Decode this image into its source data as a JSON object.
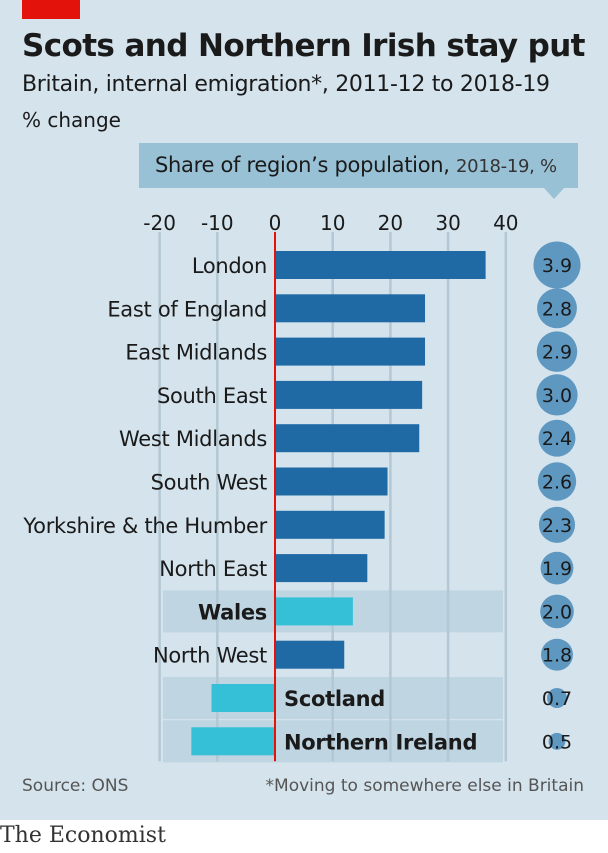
{
  "title": "Scots and Northern Irish stay put",
  "subtitle": "Britain, internal emigration*, 2011-12 to 2018-19",
  "unit_label": "% change",
  "share_header": {
    "main": "Share of region’s population,",
    "detail": "2018-19, %"
  },
  "source": "Source: ONS",
  "footnote": "*Moving to somewhere else in Britain",
  "brand": "The Economist",
  "colors": {
    "main_bar": "#1f6aa5",
    "highlight_bar": "#36c0d8",
    "circle": "#5e97c0",
    "zero_line": "#e3120b",
    "highlight_band": "#bfd5e2"
  },
  "chart_data": {
    "type": "bar",
    "orientation": "horizontal",
    "xlim": [
      -20,
      40
    ],
    "ticks": [
      -20,
      -10,
      0,
      10,
      20,
      30,
      40
    ],
    "categories": [
      "London",
      "East of England",
      "East Midlands",
      "South East",
      "West Midlands",
      "South West",
      "Yorkshire & the Humber",
      "North East",
      "Wales",
      "North West",
      "Scotland",
      "Northern Ireland"
    ],
    "values": [
      36.5,
      26,
      26,
      25.5,
      25,
      19.5,
      19,
      16,
      13.5,
      12,
      -11,
      -14.5
    ],
    "highlight": [
      false,
      false,
      false,
      false,
      false,
      false,
      false,
      false,
      true,
      false,
      true,
      true
    ],
    "share_of_population": [
      "3.9",
      "2.8",
      "2.9",
      "3.0",
      "2.4",
      "2.6",
      "2.3",
      "1.9",
      "2.0",
      "1.8",
      "0.7",
      "0.5"
    ],
    "share_values": [
      3.9,
      2.8,
      2.9,
      3.0,
      2.4,
      2.6,
      2.3,
      1.9,
      2.0,
      1.8,
      0.7,
      0.5
    ]
  }
}
